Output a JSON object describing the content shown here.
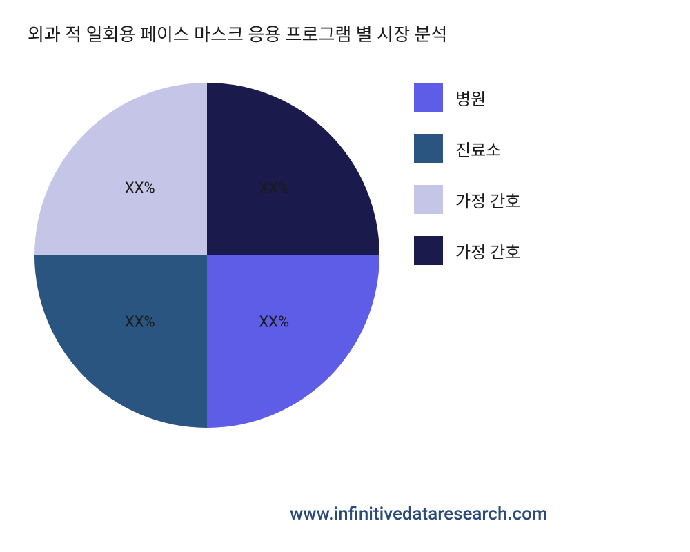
{
  "title": "외과 적 일회용 페이스 마스크 응용 프로그램 별 시장 분석",
  "footer": "www.infinitivedataresearch.com",
  "chart": {
    "type": "pie",
    "background_color": "#ffffff",
    "title_fontsize": 26,
    "title_color": "#1a1a1a",
    "label_fontsize": 22,
    "label_color": "#1a1a1a",
    "legend_fontsize": 24,
    "footer_color": "#2a4a7a",
    "footer_fontsize": 26,
    "slices": [
      {
        "label": "XX%",
        "value": 25,
        "color": "#1a1a4d",
        "legend_label": "가정 간호"
      },
      {
        "label": "XX%",
        "value": 25,
        "color": "#5d5de8",
        "legend_label": "병원"
      },
      {
        "label": "XX%",
        "value": 25,
        "color": "#2a5580",
        "legend_label": "진료소"
      },
      {
        "label": "XX%",
        "value": 25,
        "color": "#c5c5e8",
        "legend_label": "가정 간호"
      }
    ],
    "legend_order": [
      {
        "color": "#5d5de8",
        "label": "병원"
      },
      {
        "color": "#2a5580",
        "label": "진료소"
      },
      {
        "color": "#c5c5e8",
        "label": "가정 간호"
      },
      {
        "color": "#1a1a4d",
        "label": "가정 간호"
      }
    ]
  }
}
